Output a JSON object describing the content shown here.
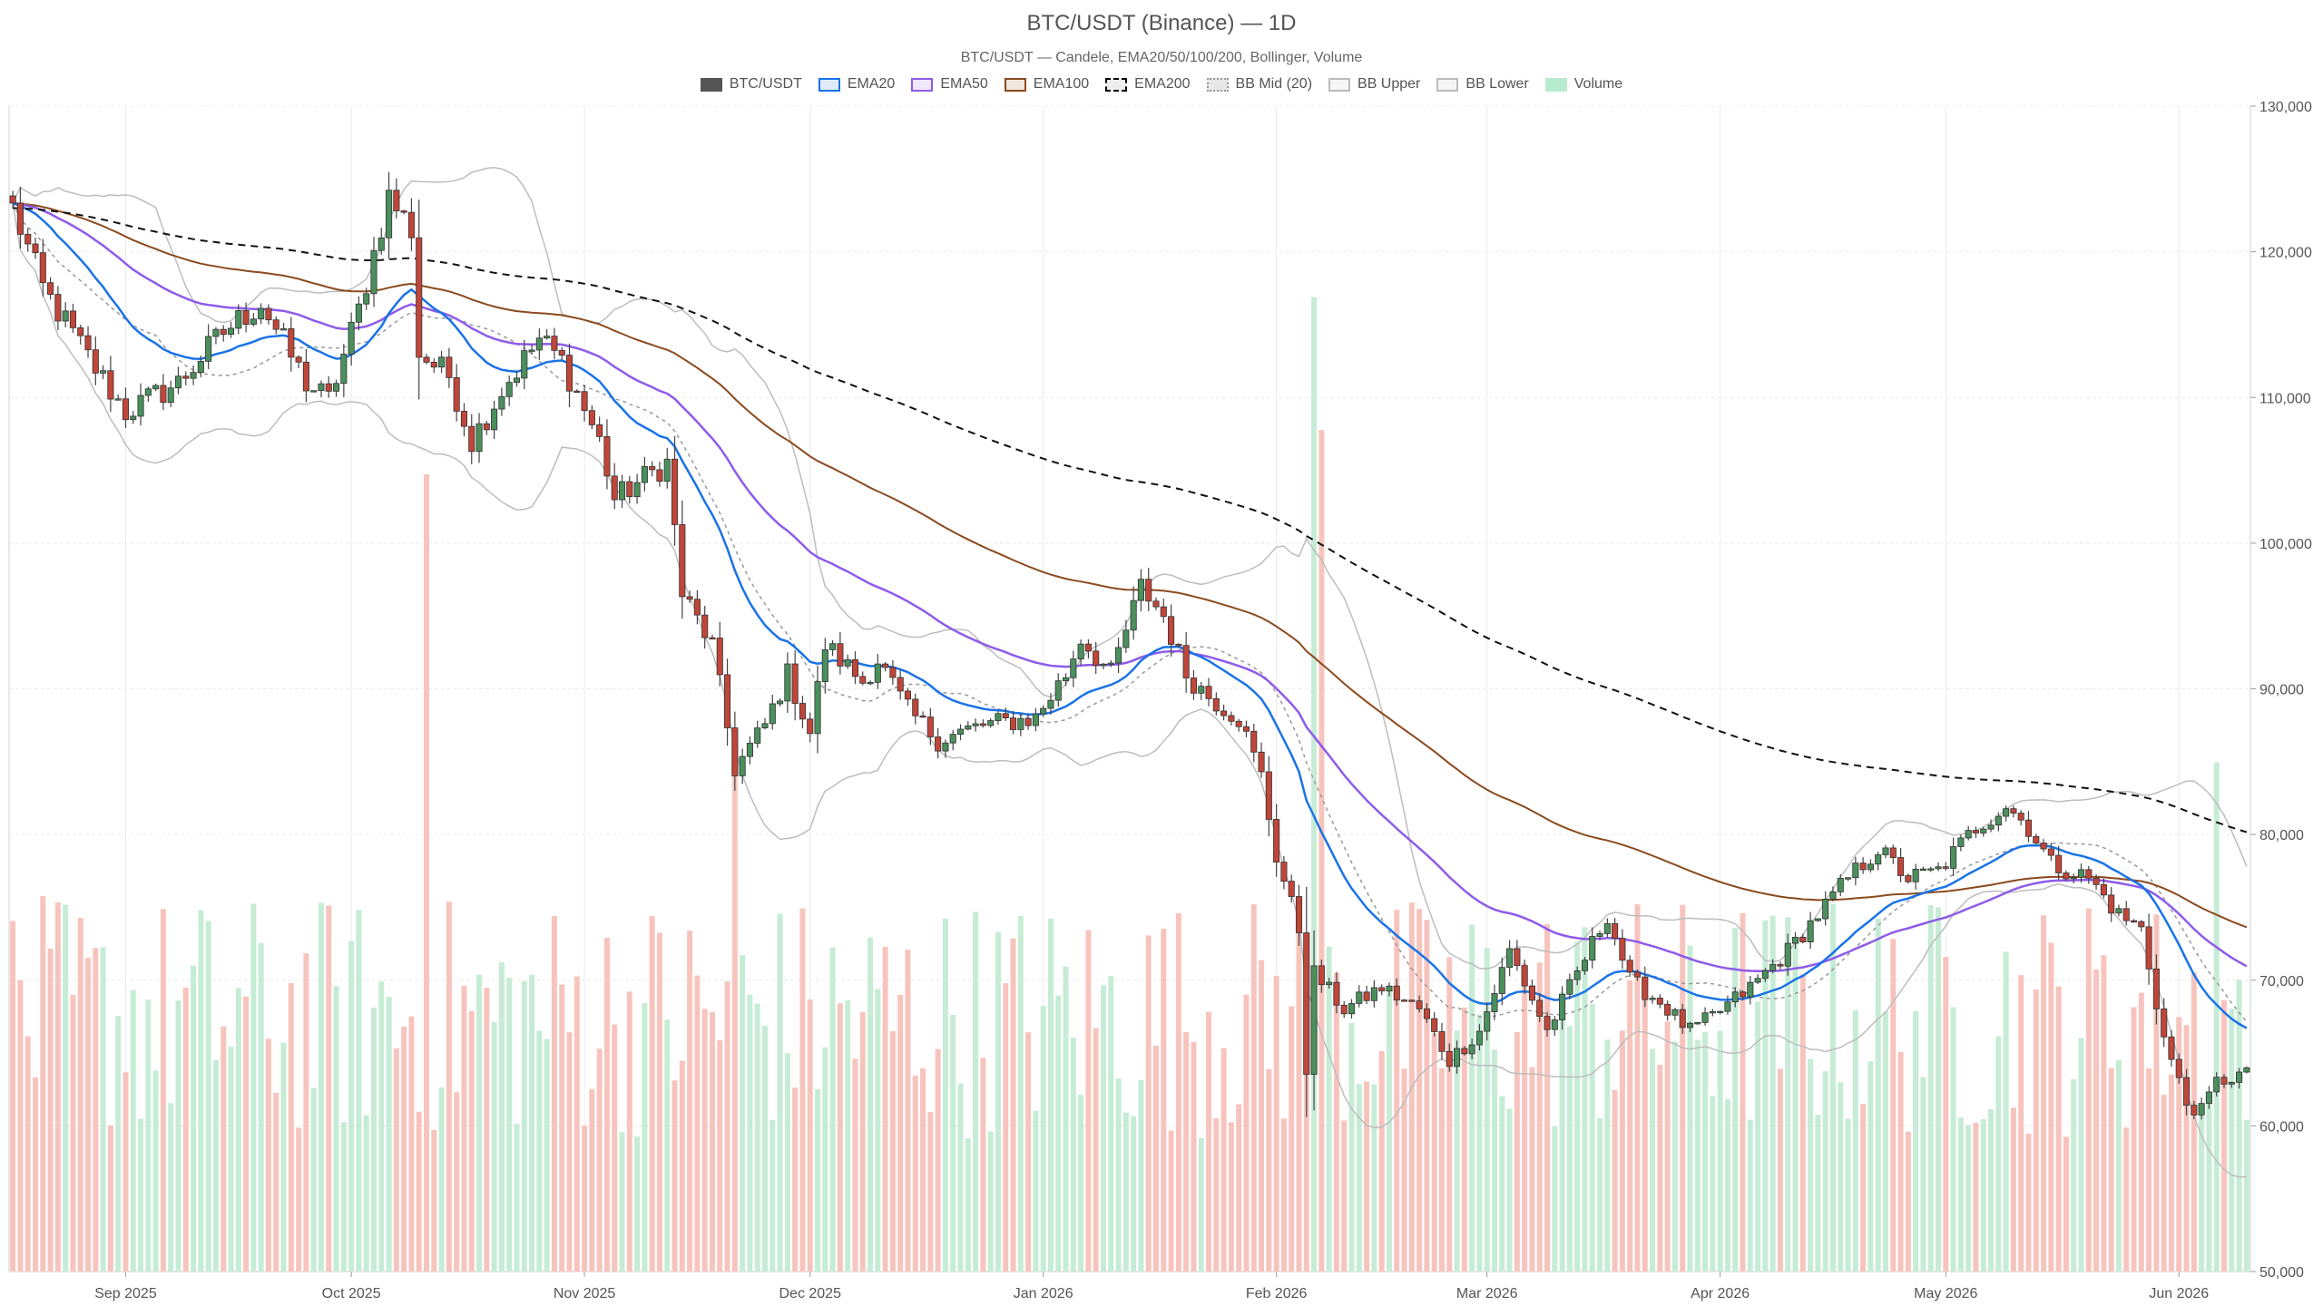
{
  "chart_data": {
    "type": "candlestick",
    "title": "BTC/USDT (Binance) — 1D",
    "subtitle": "BTC/USDT — Candele, EMA20/50/100/200, Bollinger, Volume",
    "xlabel": "",
    "ylabel": "",
    "ylim": [
      50000,
      130000
    ],
    "y_ticks": [
      50000,
      60000,
      70000,
      80000,
      90000,
      100000,
      110000,
      120000,
      130000
    ],
    "y_tick_labels": [
      "50,000",
      "60,000",
      "70,000",
      "80,000",
      "90,000",
      "100,000",
      "110,000",
      "120,000",
      "130,000"
    ],
    "x_start_date": "2025-08-17",
    "x_end_date": "2026-06-10",
    "x_ticks": [
      {
        "date": "2025-09-01",
        "label": "Sep 2025"
      },
      {
        "date": "2025-10-01",
        "label": "Oct 2025"
      },
      {
        "date": "2025-11-01",
        "label": "Nov 2025"
      },
      {
        "date": "2025-12-01",
        "label": "Dec 2025"
      },
      {
        "date": "2026-01-01",
        "label": "Jan 2026"
      },
      {
        "date": "2026-02-01",
        "label": "Feb 2026"
      },
      {
        "date": "2026-03-01",
        "label": "Mar 2026"
      },
      {
        "date": "2026-04-01",
        "label": "Apr 2026"
      },
      {
        "date": "2026-05-01",
        "label": "May 2026"
      },
      {
        "date": "2026-06-01",
        "label": "Jun 2026"
      }
    ],
    "grid": true,
    "legend_position": "top-center",
    "legend": [
      {
        "name": "BTC/USDT",
        "color": "#555555",
        "style": "solid-fill"
      },
      {
        "name": "EMA20",
        "color": "#1a73e8",
        "style": "line"
      },
      {
        "name": "EMA50",
        "color": "#8e5bea",
        "style": "line"
      },
      {
        "name": "EMA100",
        "color": "#8b4a1e",
        "style": "line"
      },
      {
        "name": "EMA200",
        "color": "#000000",
        "style": "dashed"
      },
      {
        "name": "BB Mid (20)",
        "color": "#999999",
        "style": "dotted"
      },
      {
        "name": "BB Upper",
        "color": "#bbbbbb",
        "style": "line"
      },
      {
        "name": "BB Lower",
        "color": "#bbbbbb",
        "style": "line"
      },
      {
        "name": "Volume",
        "color": "#b8ead0",
        "style": "fill"
      }
    ],
    "colors": {
      "up": "#4a8f5c",
      "down": "#c0463a",
      "vol_up": "#c6ecd5",
      "vol_down": "#f7c4bd"
    },
    "price_keypoints": [
      [
        "2025-08-17",
        123000
      ],
      [
        "2025-08-21",
        117500
      ],
      [
        "2025-08-28",
        112000
      ],
      [
        "2025-09-01",
        109000
      ],
      [
        "2025-09-08",
        111000
      ],
      [
        "2025-09-14",
        114500
      ],
      [
        "2025-09-19",
        116500
      ],
      [
        "2025-09-25",
        111000
      ],
      [
        "2025-09-28",
        109800
      ],
      [
        "2025-10-02",
        116000
      ],
      [
        "2025-10-06",
        123800
      ],
      [
        "2025-10-09",
        121500
      ],
      [
        "2025-10-10",
        113000
      ],
      [
        "2025-10-14",
        111500
      ],
      [
        "2025-10-17",
        107000
      ],
      [
        "2025-10-21",
        110500
      ],
      [
        "2025-10-26",
        114000
      ],
      [
        "2025-10-29",
        112500
      ],
      [
        "2025-11-03",
        107000
      ],
      [
        "2025-11-05",
        103000
      ],
      [
        "2025-11-09",
        104500
      ],
      [
        "2025-11-12",
        105500
      ],
      [
        "2025-11-14",
        96500
      ],
      [
        "2025-11-18",
        93000
      ],
      [
        "2025-11-21",
        84500
      ],
      [
        "2025-11-25",
        87500
      ],
      [
        "2025-11-28",
        91000
      ],
      [
        "2025-12-01",
        87000
      ],
      [
        "2025-12-03",
        93000
      ],
      [
        "2025-12-08",
        90500
      ],
      [
        "2025-12-10",
        92000
      ],
      [
        "2025-12-14",
        88500
      ],
      [
        "2025-12-18",
        86500
      ],
      [
        "2025-12-24",
        87500
      ],
      [
        "2025-12-31",
        88000
      ],
      [
        "2026-01-04",
        91000
      ],
      [
        "2026-01-06",
        93500
      ],
      [
        "2026-01-10",
        91000
      ],
      [
        "2026-01-14",
        97000
      ],
      [
        "2026-01-17",
        95000
      ],
      [
        "2026-01-20",
        91000
      ],
      [
        "2026-01-23",
        89500
      ],
      [
        "2026-01-27",
        88000
      ],
      [
        "2026-01-30",
        84000
      ],
      [
        "2026-02-01",
        78500
      ],
      [
        "2026-02-04",
        73500
      ],
      [
        "2026-02-05",
        64000
      ],
      [
        "2026-02-06",
        70500
      ],
      [
        "2026-02-10",
        68000
      ],
      [
        "2026-02-15",
        69500
      ],
      [
        "2026-02-20",
        68000
      ],
      [
        "2026-02-24",
        64500
      ],
      [
        "2026-02-28",
        66500
      ],
      [
        "2026-03-04",
        72000
      ],
      [
        "2026-03-09",
        66500
      ],
      [
        "2026-03-13",
        70500
      ],
      [
        "2026-03-17",
        74500
      ],
      [
        "2026-03-20",
        70000
      ],
      [
        "2026-03-24",
        68500
      ],
      [
        "2026-03-28",
        66500
      ],
      [
        "2026-03-31",
        67500
      ],
      [
        "2026-04-05",
        69500
      ],
      [
        "2026-04-10",
        72000
      ],
      [
        "2026-04-14",
        74500
      ],
      [
        "2026-04-18",
        77000
      ],
      [
        "2026-04-22",
        79000
      ],
      [
        "2026-04-26",
        77000
      ],
      [
        "2026-04-30",
        77500
      ],
      [
        "2026-05-05",
        80500
      ],
      [
        "2026-05-09",
        82000
      ],
      [
        "2026-05-12",
        80500
      ],
      [
        "2026-05-15",
        78000
      ],
      [
        "2026-05-20",
        77000
      ],
      [
        "2026-05-24",
        74500
      ],
      [
        "2026-05-27",
        73500
      ],
      [
        "2026-05-30",
        66000
      ],
      [
        "2026-06-02",
        61500
      ],
      [
        "2026-06-04",
        61000
      ],
      [
        "2026-06-06",
        63000
      ],
      [
        "2026-06-09",
        63500
      ]
    ],
    "volume_spikes": [
      {
        "date": "2025-10-11",
        "value": 0.72
      },
      {
        "date": "2025-11-21",
        "value": 0.48
      },
      {
        "date": "2026-02-06",
        "value": 0.88
      },
      {
        "date": "2026-02-07",
        "value": 0.76
      },
      {
        "date": "2026-06-06",
        "value": 0.46
      }
    ],
    "ema_values_at_end": {
      "EMA20": 69500,
      "EMA50": 73000,
      "EMA100": 75000,
      "EMA200": 81000
    },
    "series": [
      {
        "name": "BTC/USDT"
      },
      {
        "name": "EMA20"
      },
      {
        "name": "EMA50"
      },
      {
        "name": "EMA100"
      },
      {
        "name": "EMA200"
      },
      {
        "name": "BB Mid (20)"
      },
      {
        "name": "BB Upper"
      },
      {
        "name": "BB Lower"
      },
      {
        "name": "Volume"
      }
    ]
  }
}
